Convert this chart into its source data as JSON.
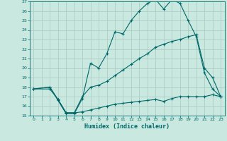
{
  "xlabel": "Humidex (Indice chaleur)",
  "background_color": "#c8e8e0",
  "grid_color": "#a8c8c0",
  "line_color": "#006868",
  "xlim": [
    -0.5,
    23.5
  ],
  "ylim": [
    15,
    27
  ],
  "xticks": [
    0,
    1,
    2,
    3,
    4,
    5,
    6,
    7,
    8,
    9,
    10,
    11,
    12,
    13,
    14,
    15,
    16,
    17,
    18,
    19,
    20,
    21,
    22,
    23
  ],
  "yticks": [
    15,
    16,
    17,
    18,
    19,
    20,
    21,
    22,
    23,
    24,
    25,
    26,
    27
  ],
  "curve1_x": [
    0,
    2,
    3,
    4,
    5,
    6,
    7,
    8,
    9,
    10,
    11,
    12,
    13,
    14,
    15,
    16,
    17,
    18,
    19,
    20,
    21,
    22,
    23
  ],
  "curve1_y": [
    17.8,
    18.0,
    16.6,
    15.2,
    15.2,
    16.8,
    20.5,
    20.0,
    21.5,
    23.8,
    23.6,
    25.0,
    26.0,
    26.8,
    27.2,
    26.2,
    27.2,
    26.8,
    25.0,
    23.3,
    19.5,
    17.8,
    17.0
  ],
  "curve2_x": [
    0,
    2,
    3,
    4,
    5,
    6,
    7,
    8,
    9,
    10,
    11,
    12,
    13,
    14,
    15,
    16,
    17,
    18,
    19,
    20,
    21,
    22,
    23
  ],
  "curve2_y": [
    17.8,
    18.0,
    16.7,
    15.3,
    15.3,
    17.0,
    18.0,
    18.2,
    18.6,
    19.2,
    19.8,
    20.4,
    21.0,
    21.5,
    22.2,
    22.5,
    22.8,
    23.0,
    23.3,
    23.5,
    20.0,
    19.0,
    17.0
  ],
  "curve3_x": [
    0,
    2,
    3,
    4,
    5,
    6,
    7,
    8,
    9,
    10,
    11,
    12,
    13,
    14,
    15,
    16,
    17,
    18,
    19,
    20,
    21,
    22,
    23
  ],
  "curve3_y": [
    17.8,
    17.8,
    16.7,
    15.3,
    15.3,
    15.4,
    15.6,
    15.8,
    16.0,
    16.2,
    16.3,
    16.4,
    16.5,
    16.6,
    16.7,
    16.5,
    16.8,
    17.0,
    17.0,
    17.0,
    17.0,
    17.2,
    17.0
  ]
}
